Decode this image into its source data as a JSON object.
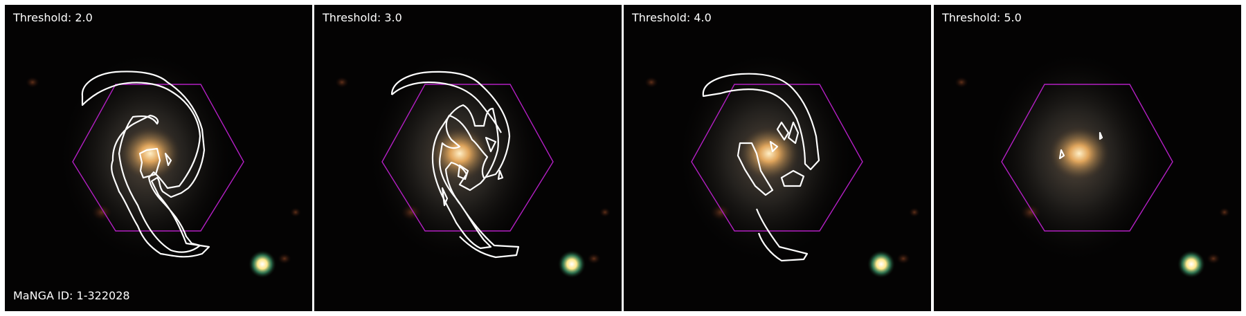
{
  "panels": [
    {
      "threshold_label": "Threshold: 2.0"
    },
    {
      "threshold_label": "Threshold: 3.0"
    },
    {
      "threshold_label": "Threshold: 4.0"
    },
    {
      "threshold_label": "Threshold: 5.0"
    }
  ],
  "manga_id_label": "MaNGA ID: 1-322028",
  "colors": {
    "background": "#040303",
    "hexagon": "#b41fc4",
    "contour": "#ffffff",
    "galaxy_core": "#f6c27a"
  }
}
